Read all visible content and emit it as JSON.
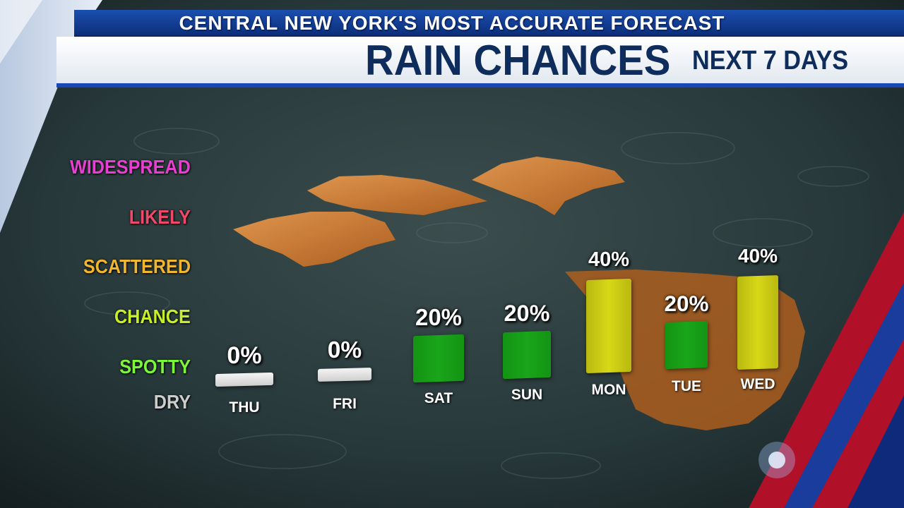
{
  "header": {
    "tagline": "CENTRAL NEW YORK'S MOST ACCURATE FORECAST",
    "title": "RAIN CHANCES",
    "subtitle": "NEXT 7 DAYS"
  },
  "colors": {
    "header_blue": "#0e2c5c",
    "dry": "#e8e8e8",
    "chance": "#1aa51a",
    "scattered": "#d8d818"
  },
  "chart_data": {
    "type": "bar",
    "title": "RAIN CHANCES",
    "subtitle": "NEXT 7 DAYS",
    "ylabel": "",
    "y_scale_labels": [
      {
        "label": "DRY",
        "color": "#cccccc"
      },
      {
        "label": "SPOTTY",
        "color": "#7cf53a"
      },
      {
        "label": "CHANCE",
        "color": "#c6ef2a"
      },
      {
        "label": "SCATTERED",
        "color": "#f0b62e"
      },
      {
        "label": "LIKELY",
        "color": "#f0476a"
      },
      {
        "label": "WIDESPREAD",
        "color": "#e83ed2"
      }
    ],
    "categories": [
      "THU",
      "FRI",
      "SAT",
      "SUN",
      "MON",
      "TUE",
      "WED"
    ],
    "values": [
      0,
      0,
      20,
      20,
      40,
      20,
      40
    ],
    "value_labels": [
      "0%",
      "0%",
      "20%",
      "20%",
      "40%",
      "20%",
      "40%"
    ],
    "ylim": [
      0,
      100
    ],
    "grid": false,
    "legend": "none"
  }
}
